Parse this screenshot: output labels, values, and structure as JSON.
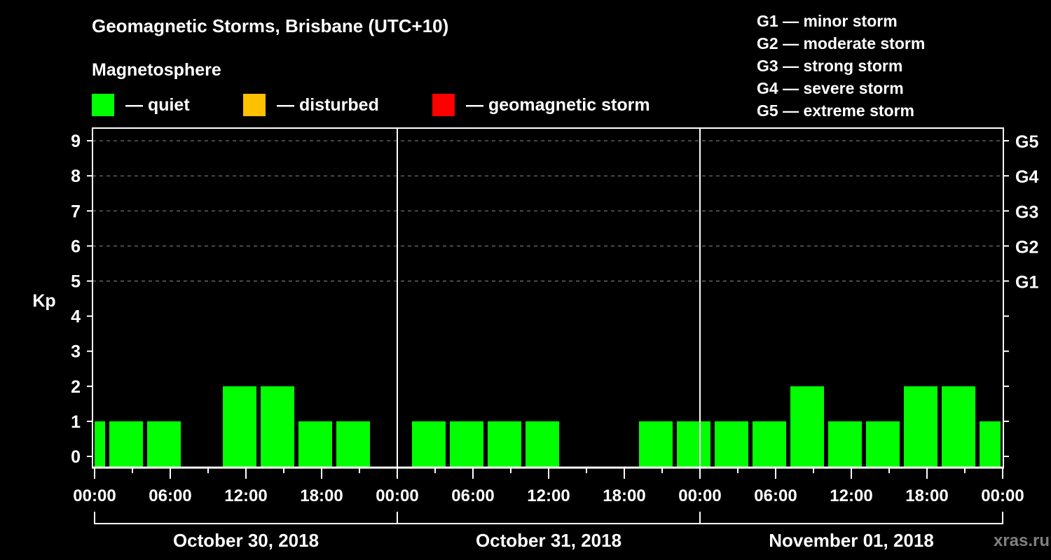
{
  "header": {
    "title": "Geomagnetic Storms, Brisbane (UTC+10)",
    "subtitle": "Magnetosphere"
  },
  "legend": [
    {
      "label": "— quiet",
      "color": "#00ff00"
    },
    {
      "label": "— disturbed",
      "color": "#ffc000"
    },
    {
      "label": "— geomagnetic storm",
      "color": "#ff0000"
    }
  ],
  "storm_scale": [
    "G1 — minor storm",
    "G2 — moderate storm",
    "G3 — strong storm",
    "G4 — severe storm",
    "G5 — extreme storm"
  ],
  "axes": {
    "ylabel": "Kp",
    "yticks": [
      "0",
      "1",
      "2",
      "3",
      "4",
      "5",
      "6",
      "7",
      "8",
      "9"
    ],
    "right_ticks": [
      {
        "kp": 5,
        "label": "G1"
      },
      {
        "kp": 6,
        "label": "G2"
      },
      {
        "kp": 7,
        "label": "G3"
      },
      {
        "kp": 8,
        "label": "G4"
      },
      {
        "kp": 9,
        "label": "G5"
      }
    ],
    "xticks": [
      "00:00",
      "06:00",
      "12:00",
      "18:00",
      "00:00",
      "06:00",
      "12:00",
      "18:00",
      "00:00",
      "06:00",
      "12:00",
      "18:00",
      "00:00"
    ],
    "dates": [
      "October 30, 2018",
      "October 31, 2018",
      "November 01, 2018"
    ]
  },
  "watermark": "xras.ru",
  "chart_data": {
    "type": "bar",
    "title": "Geomagnetic Storms, Brisbane (UTC+10)",
    "xlabel": "",
    "ylabel": "Kp",
    "ylim": [
      0,
      9
    ],
    "grid": "dashed horizontal at Kp 5-9",
    "interval_hours": 3,
    "categories": [
      "Oct 29 22:00",
      "Oct 30 01:00",
      "Oct 30 04:00",
      "Oct 30 07:00",
      "Oct 30 10:00",
      "Oct 30 13:00",
      "Oct 30 16:00",
      "Oct 30 19:00",
      "Oct 30 22:00",
      "Oct 31 01:00",
      "Oct 31 04:00",
      "Oct 31 07:00",
      "Oct 31 10:00",
      "Oct 31 13:00",
      "Oct 31 16:00",
      "Oct 31 19:00",
      "Oct 31 22:00",
      "Nov 01 01:00",
      "Nov 01 04:00",
      "Nov 01 07:00",
      "Nov 01 10:00",
      "Nov 01 13:00",
      "Nov 01 16:00",
      "Nov 01 19:00",
      "Nov 01 22:00"
    ],
    "series": [
      {
        "name": "Kp (quiet)",
        "color": "#00ff00",
        "values": [
          1,
          1,
          1,
          0,
          2,
          2,
          1,
          1,
          0,
          1,
          1,
          1,
          1,
          0,
          0,
          1,
          1,
          1,
          1,
          2,
          1,
          1,
          2,
          2,
          1
        ]
      }
    ],
    "legend": [
      "quiet",
      "disturbed",
      "geomagnetic storm"
    ],
    "right_axis": {
      "G1": 5,
      "G2": 6,
      "G3": 7,
      "G4": 8,
      "G5": 9
    }
  }
}
